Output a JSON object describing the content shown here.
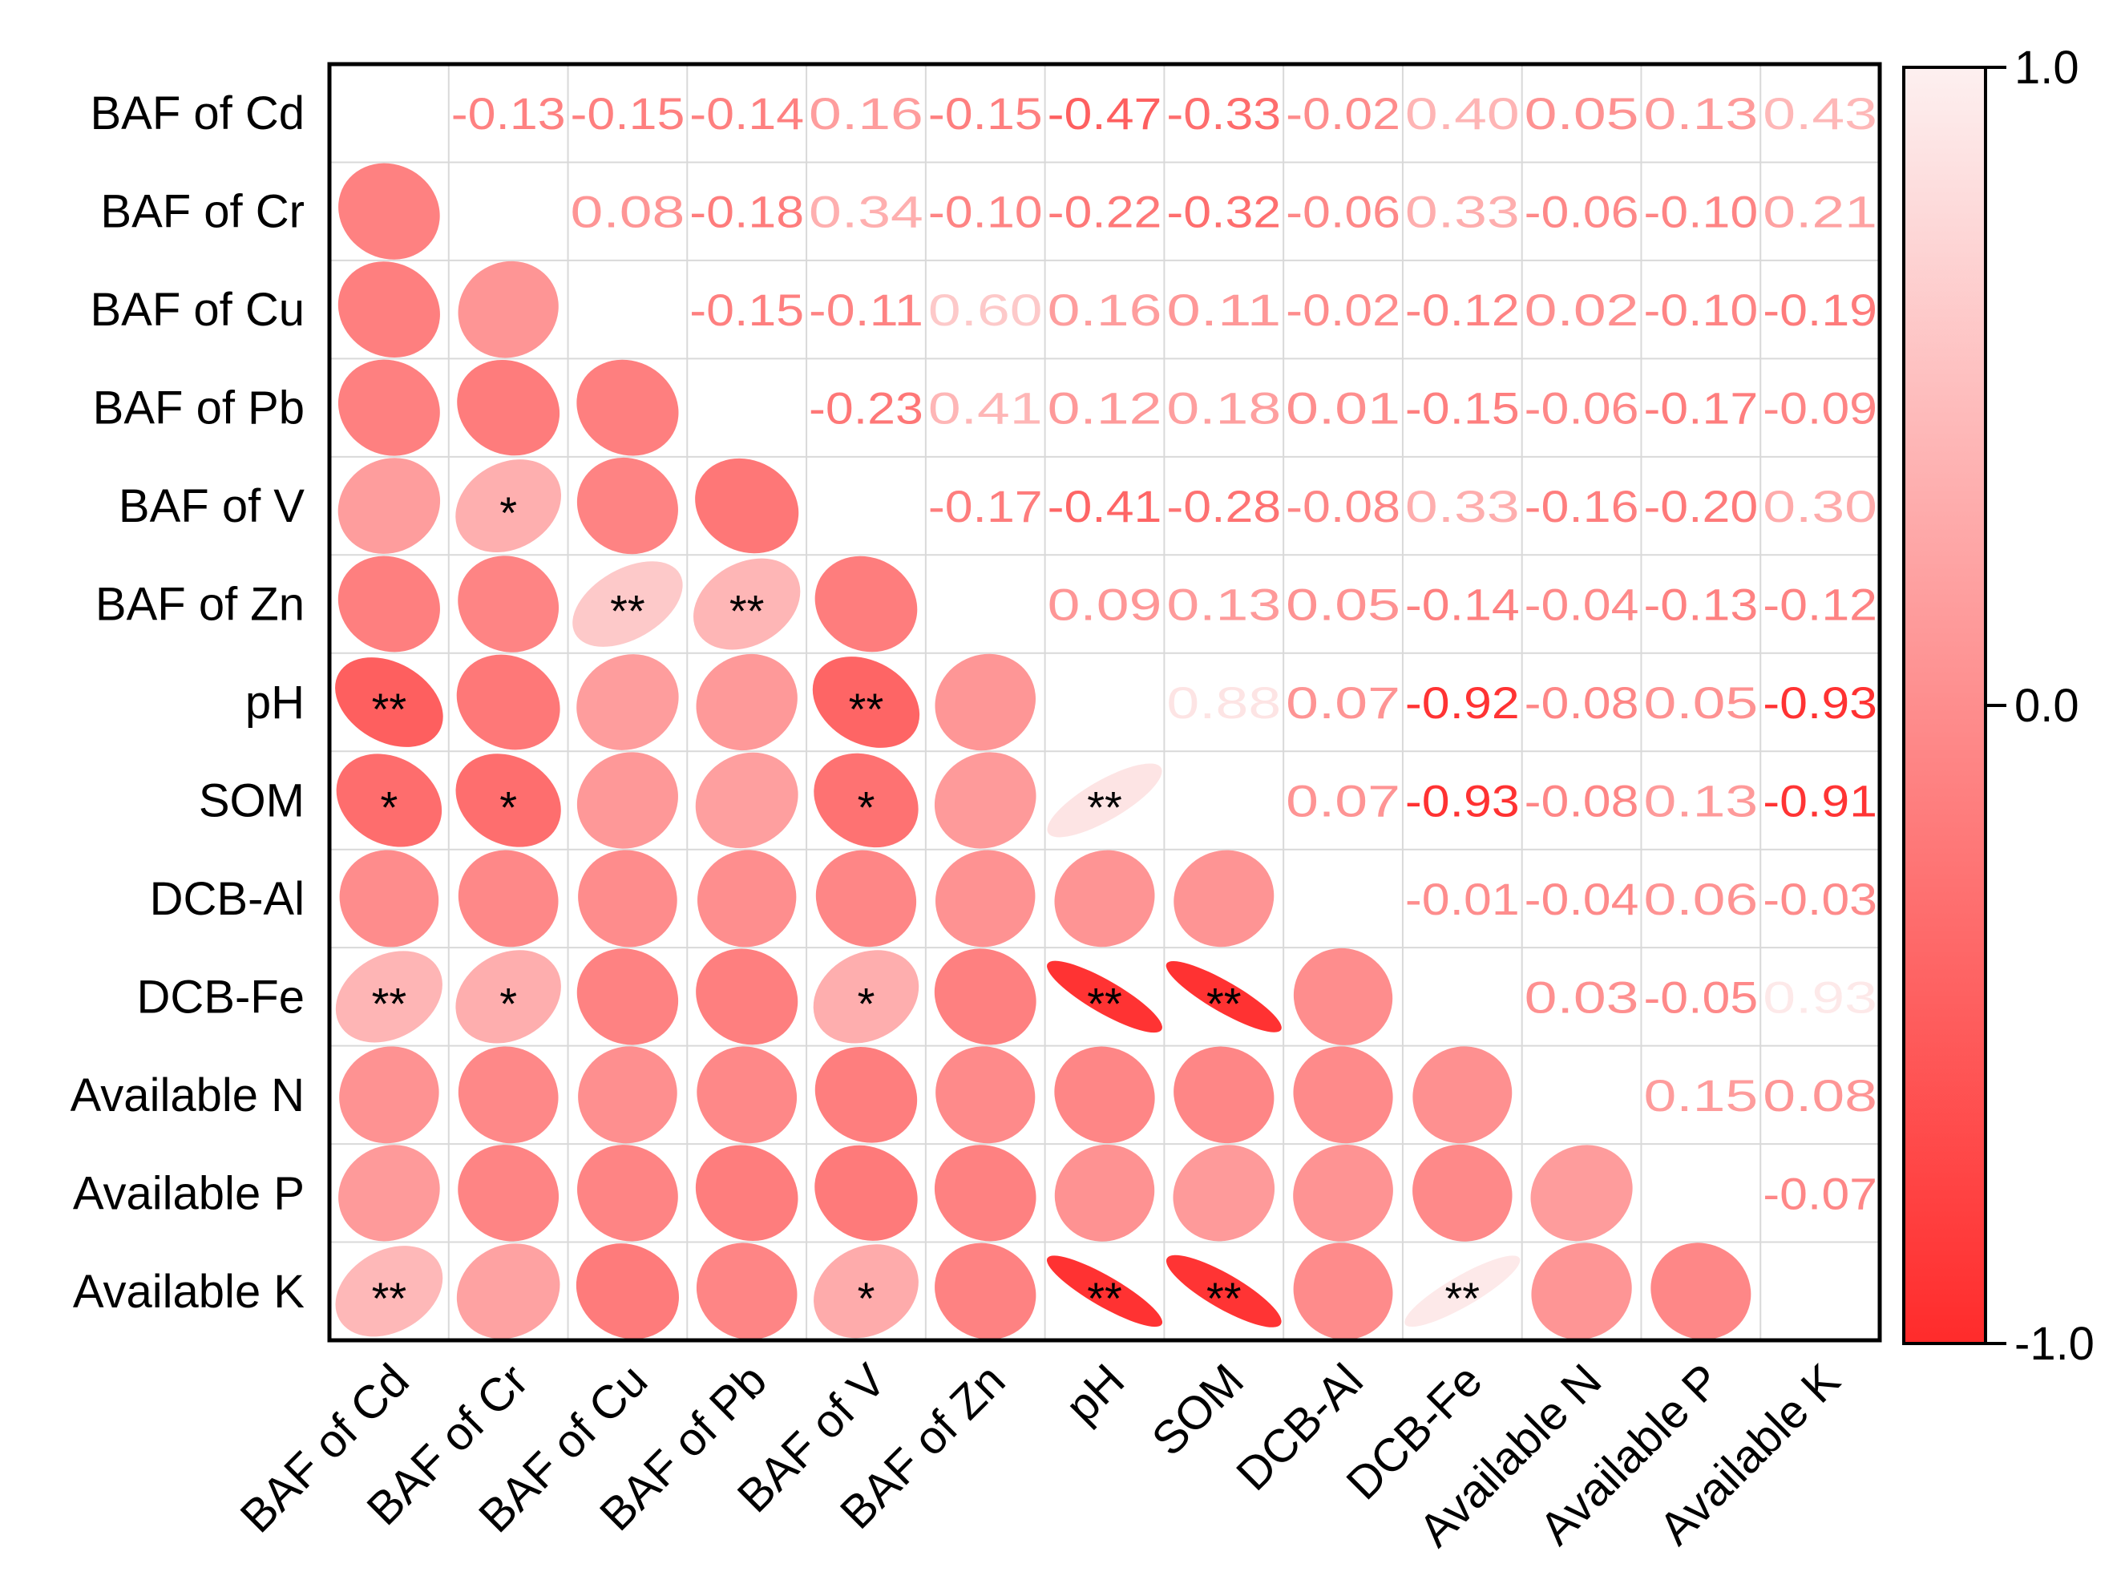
{
  "chart_data": {
    "type": "heatmap",
    "title": "",
    "variables": [
      "BAF of Cd",
      "BAF of Cr",
      "BAF of Cu",
      "BAF of Pb",
      "BAF of V",
      "BAF of Zn",
      "pH",
      "SOM",
      "DCB-Al",
      "DCB-Fe",
      "Available N",
      "Available P",
      "Available K"
    ],
    "upper_labels": [
      [
        "",
        "-0.13",
        "-0.15",
        "-0.14",
        "0.16",
        "-0.15",
        "-0.47",
        "-0.33",
        "-0.02",
        "0.40",
        "0.05",
        "0.13",
        "0.43"
      ],
      [
        "",
        "",
        "0.08",
        "-0.18",
        "0.34",
        "-0.10",
        "-0.22",
        "-0.32",
        "-0.06",
        "0.33",
        "-0.06",
        "-0.10",
        "0.21"
      ],
      [
        "",
        "",
        "",
        "-0.15",
        "-0.11",
        "0.60",
        "0.16",
        "0.11",
        "-0.02",
        "-0.12",
        "0.02",
        "-0.10",
        "-0.19"
      ],
      [
        "",
        "",
        "",
        "",
        "-0.23",
        "0.41",
        "0.12",
        "0.18",
        "0.01",
        "-0.15",
        "-0.06",
        "-0.17",
        "-0.09"
      ],
      [
        "",
        "",
        "",
        "",
        "",
        "-0.17",
        "-0.41",
        "-0.28",
        "-0.08",
        "0.33",
        "-0.16",
        "-0.20",
        "0.30"
      ],
      [
        "",
        "",
        "",
        "",
        "",
        "",
        "0.09",
        "0.13",
        "0.05",
        "-0.14",
        "-0.04",
        "-0.13",
        "-0.12"
      ],
      [
        "",
        "",
        "",
        "",
        "",
        "",
        "",
        "0.88",
        "0.07",
        "-0.92",
        "-0.08",
        "0.05",
        "-0.93"
      ],
      [
        "",
        "",
        "",
        "",
        "",
        "",
        "",
        "",
        "0.07",
        "-0.93",
        "-0.08",
        "0.13",
        "-0.91"
      ],
      [
        "",
        "",
        "",
        "",
        "",
        "",
        "",
        "",
        "",
        "-0.01",
        "-0.04",
        "0.06",
        "-0.03"
      ],
      [
        "",
        "",
        "",
        "",
        "",
        "",
        "",
        "",
        "",
        "",
        "0.03",
        "-0.05",
        "0.93"
      ],
      [
        "",
        "",
        "",
        "",
        "",
        "",
        "",
        "",
        "",
        "",
        "",
        "0.15",
        "0.08"
      ],
      [
        "",
        "",
        "",
        "",
        "",
        "",
        "",
        "",
        "",
        "",
        "",
        "",
        "-0.07"
      ],
      [
        "",
        "",
        "",
        "",
        "",
        "",
        "",
        "",
        "",
        "",
        "",
        "",
        ""
      ]
    ],
    "significance": [
      [
        "",
        "",
        "",
        "",
        "",
        "",
        "",
        "",
        "",
        "",
        "",
        "",
        ""
      ],
      [
        "",
        "",
        "",
        "",
        "",
        "",
        "",
        "",
        "",
        "",
        "",
        "",
        ""
      ],
      [
        "",
        "",
        "",
        "",
        "",
        "",
        "",
        "",
        "",
        "",
        "",
        "",
        ""
      ],
      [
        "",
        "",
        "",
        "",
        "",
        "",
        "",
        "",
        "",
        "",
        "",
        "",
        ""
      ],
      [
        "",
        "*",
        "",
        "",
        "",
        "",
        "",
        "",
        "",
        "",
        "",
        "",
        ""
      ],
      [
        "",
        "",
        "**",
        "**",
        "",
        "",
        "",
        "",
        "",
        "",
        "",
        "",
        ""
      ],
      [
        "**",
        "",
        "",
        "",
        "**",
        "",
        "",
        "",
        "",
        "",
        "",
        "",
        ""
      ],
      [
        "*",
        "*",
        "",
        "",
        "*",
        "",
        "**",
        "",
        "",
        "",
        "",
        "",
        ""
      ],
      [
        "",
        "",
        "",
        "",
        "",
        "",
        "",
        "",
        "",
        "",
        "",
        "",
        ""
      ],
      [
        "**",
        "*",
        "",
        "",
        "*",
        "",
        "**",
        "**",
        "",
        "",
        "",
        "",
        ""
      ],
      [
        "",
        "",
        "",
        "",
        "",
        "",
        "",
        "",
        "",
        "",
        "",
        "",
        ""
      ],
      [
        "",
        "",
        "",
        "",
        "",
        "",
        "",
        "",
        "",
        "",
        "",
        "",
        ""
      ],
      [
        "**",
        "",
        "",
        "",
        "*",
        "",
        "**",
        "**",
        "",
        "**",
        "",
        "",
        ""
      ]
    ],
    "colorbar": {
      "min": -1.0,
      "max": 1.0,
      "ticks": [
        "1.0",
        "0.0",
        "-1.0"
      ],
      "color_low": "#ff2b2b",
      "color_high": "#fdf0f0"
    },
    "grid_color": "#d9d9d9",
    "text_color": "#000000"
  }
}
